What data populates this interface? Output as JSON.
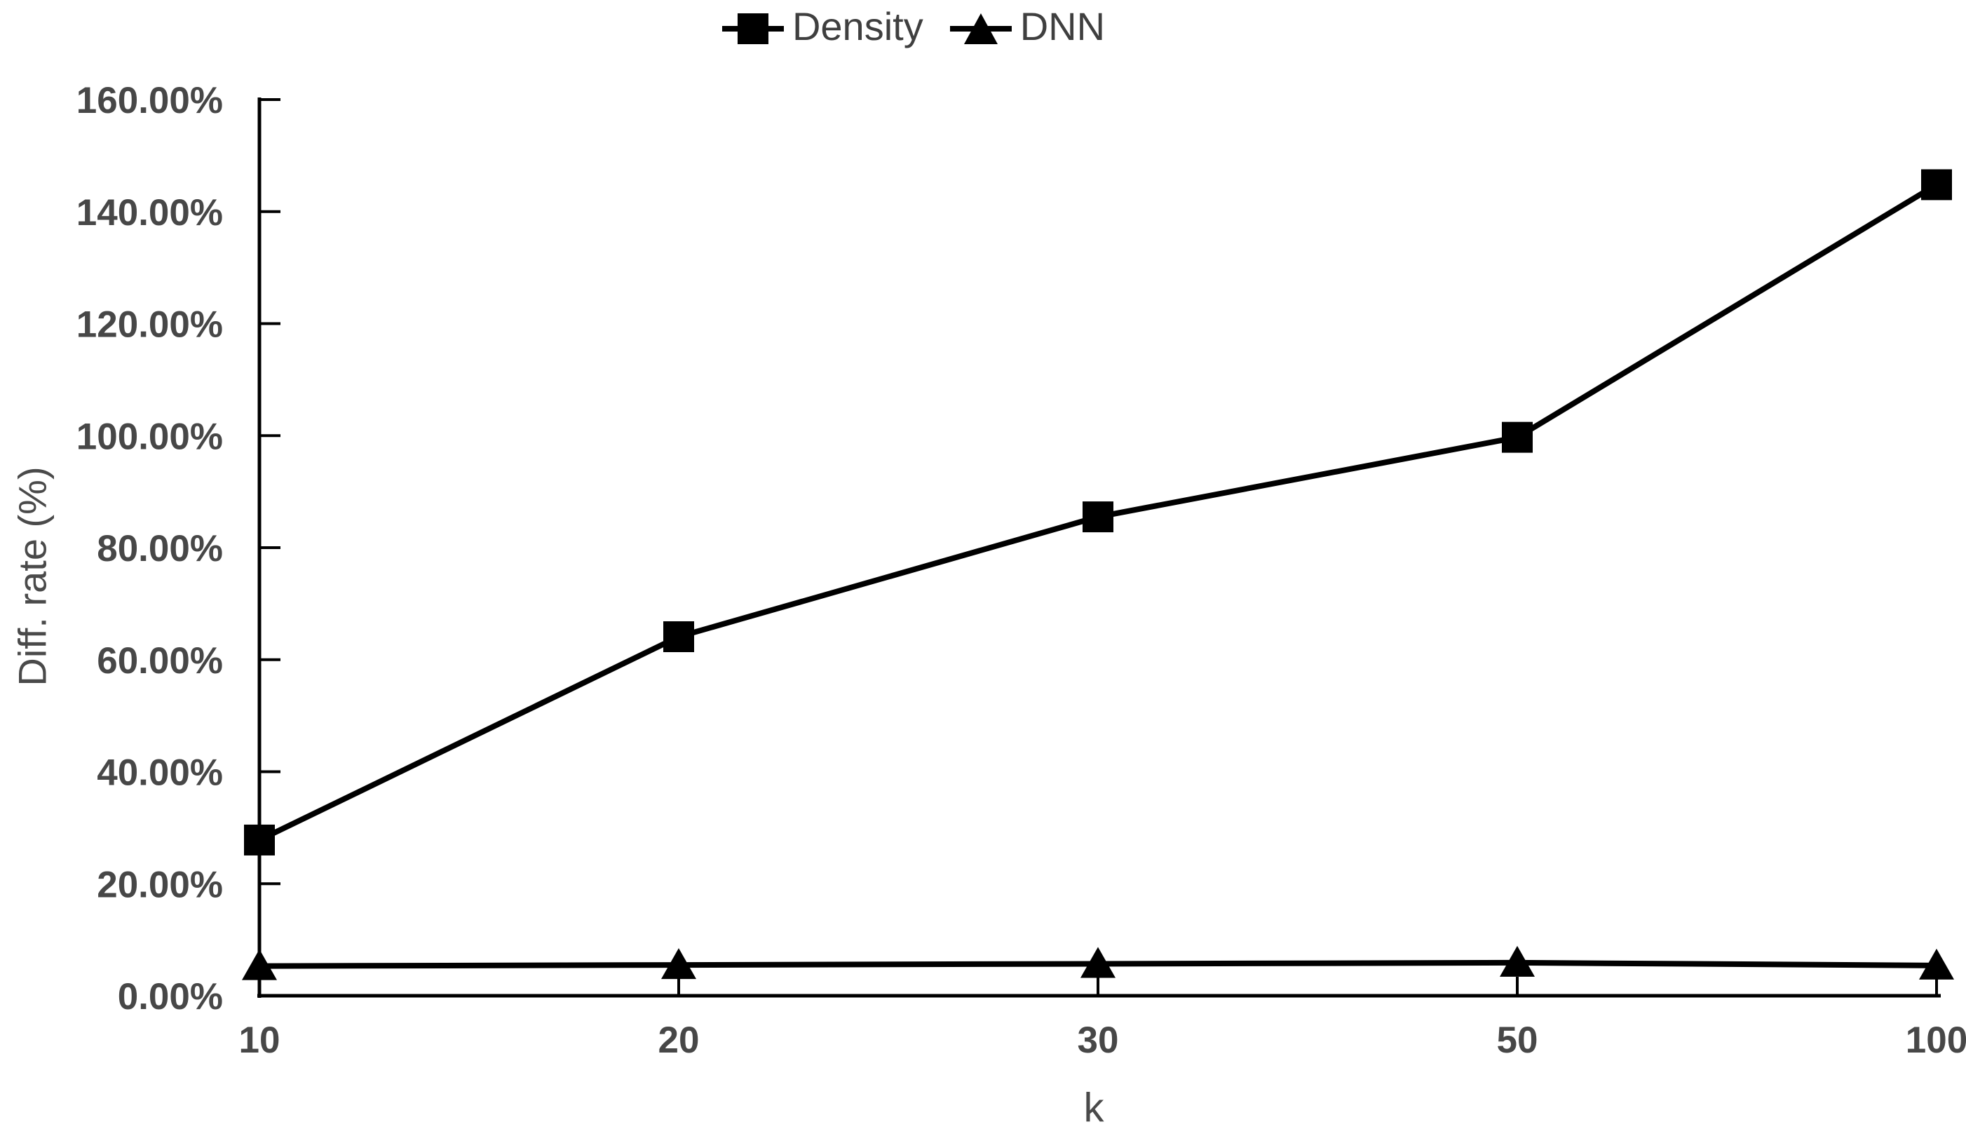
{
  "chart_data": {
    "type": "line",
    "title": "",
    "xlabel": "k",
    "ylabel": "Diff. rate (%)",
    "categories": [
      "10",
      "20",
      "30",
      "50",
      "100"
    ],
    "series": [
      {
        "name": "Density",
        "marker": "square",
        "values": [
          27.8,
          64.1,
          85.5,
          99.7,
          144.8
        ]
      },
      {
        "name": "DNN",
        "marker": "triangle",
        "values": [
          5.3,
          5.5,
          5.7,
          5.9,
          5.4
        ]
      }
    ],
    "ylim": [
      0,
      160
    ],
    "y_tick_step": 20,
    "y_tick_labels": [
      "0.00%",
      "20.00%",
      "40.00%",
      "60.00%",
      "80.00%",
      "100.00%",
      "120.00%",
      "140.00%",
      "160.00%"
    ],
    "grid": false,
    "legend_position": "top-center",
    "line_color": "#000000",
    "marker_color": "#000000",
    "text_color": "#474747"
  }
}
